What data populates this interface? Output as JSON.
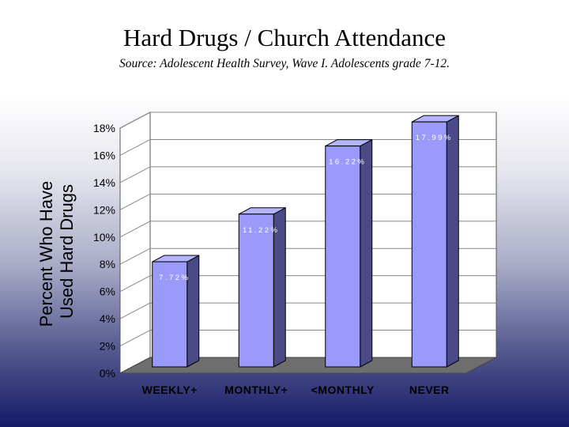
{
  "chart_data": {
    "type": "bar",
    "title": "Hard Drugs / Church Attendance",
    "subtitle": "Source: Adolescent Health Survey, Wave I. Adolescents grade 7-12.",
    "categories": [
      "WEEKLY+",
      "MONTHLY+",
      "<MONTHLY",
      "NEVER"
    ],
    "values": [
      7.72,
      11.22,
      16.22,
      17.99
    ],
    "data_labels": [
      "7.72%",
      "11.22%",
      "16.22%",
      "17.99%"
    ],
    "ylabel_lines": [
      "Percent Who Have",
      "Used Hard Drugs"
    ],
    "xlabel": "",
    "ylim": [
      0,
      18
    ],
    "yticks": [
      "0%",
      "2%",
      "4%",
      "6%",
      "8%",
      "10%",
      "12%",
      "14%",
      "16%",
      "18%"
    ],
    "grid": true,
    "style": "3d",
    "colors": {
      "bar_front": "#9a9afb",
      "bar_side": "#4a4a86",
      "bar_top": "#b4b4fc",
      "wall": "#ffffff",
      "floor": "#6e6e6e",
      "grid": "#888888"
    }
  }
}
